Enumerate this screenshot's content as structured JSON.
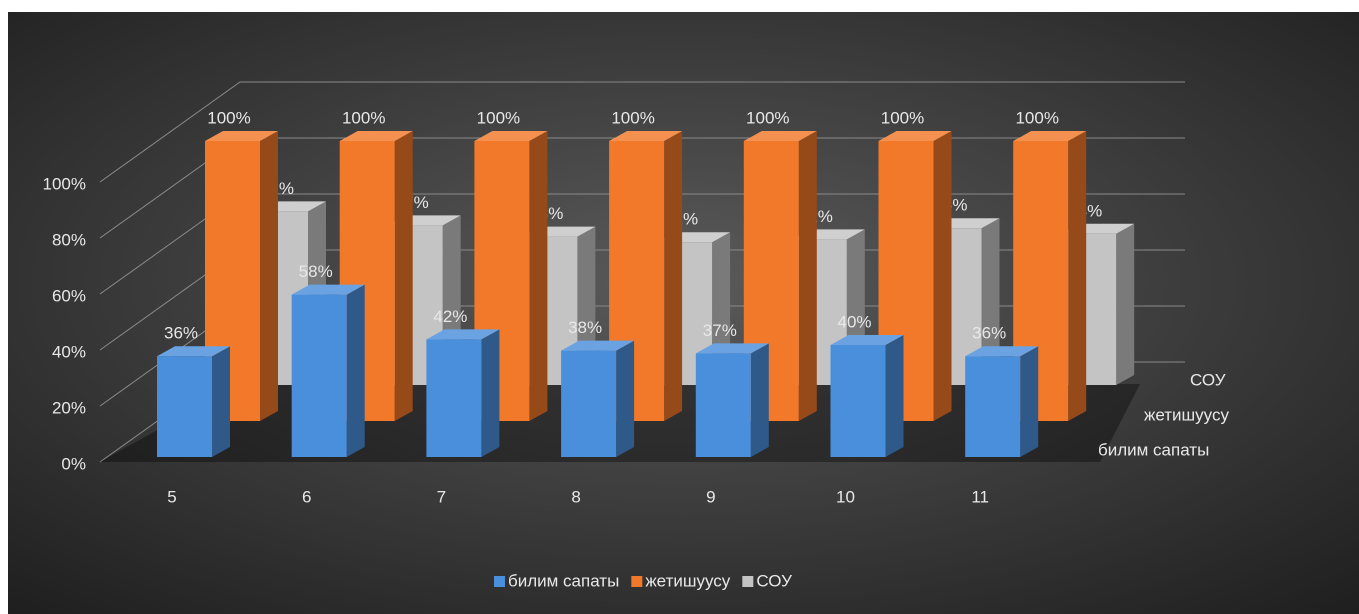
{
  "chart_data": {
    "type": "bar3d",
    "categories": [
      "5",
      "6",
      "7",
      "8",
      "9",
      "10",
      "11"
    ],
    "series": [
      {
        "name": "билим сапаты",
        "color": "#4a8fdc",
        "values": [
          36,
          58,
          42,
          38,
          37,
          40,
          36
        ],
        "value_labels": [
          "36%",
          "58%",
          "42%",
          "38%",
          "37%",
          "40%",
          "36%"
        ]
      },
      {
        "name": "жетишуусу",
        "color": "#f2782a",
        "values": [
          100,
          100,
          100,
          100,
          100,
          100,
          100
        ],
        "value_labels": [
          "100%",
          "100%",
          "100%",
          "100%",
          "100%",
          "100%",
          "100%"
        ]
      },
      {
        "name": "СОУ",
        "color": "#c4c4c4",
        "values": [
          62,
          57,
          53,
          51,
          52,
          56,
          54
        ],
        "value_labels": [
          "62%",
          "57%",
          "53%",
          "51%",
          "52%",
          "56%",
          "54%"
        ]
      }
    ],
    "ylim": [
      0,
      100
    ],
    "yticks": [
      {
        "value": 0,
        "label": "0%"
      },
      {
        "value": 20,
        "label": "20%"
      },
      {
        "value": 40,
        "label": "40%"
      },
      {
        "value": 60,
        "label": "60%"
      },
      {
        "value": 80,
        "label": "80%"
      },
      {
        "value": 100,
        "label": "100%"
      }
    ],
    "grid": true
  }
}
